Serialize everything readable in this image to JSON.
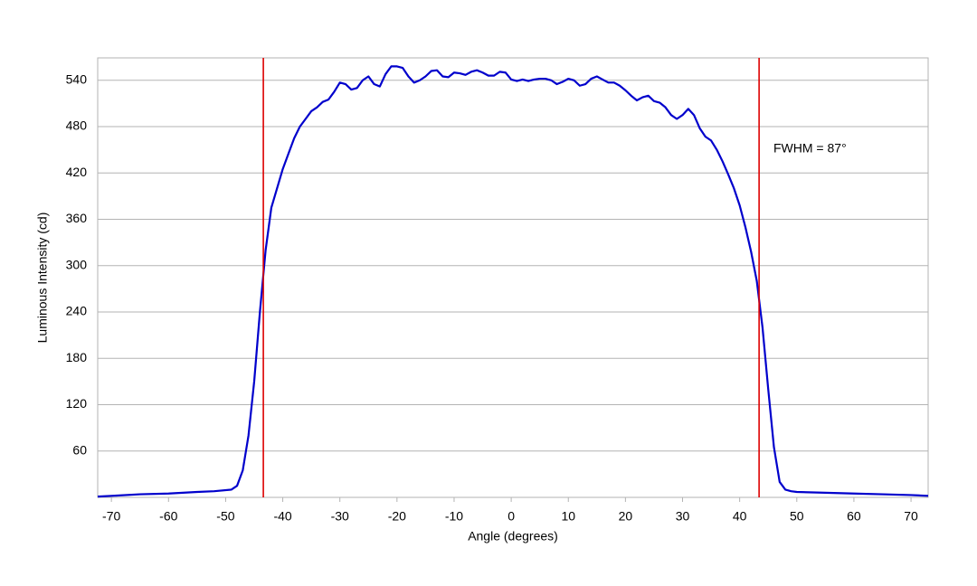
{
  "chart_data": {
    "type": "line",
    "x_label": "Angle (degrees)",
    "y_label": "Luminous Intensity (cd)",
    "x": [
      -72.4,
      -65,
      -60,
      -55,
      -52,
      -49,
      -48,
      -47,
      -46,
      -45,
      -44,
      -43,
      -42,
      -41,
      -40,
      -39,
      -38,
      -37,
      -36,
      -35,
      -34,
      -33,
      -32,
      -31,
      -30,
      -29,
      -28,
      -27,
      -26,
      -25,
      -24,
      -23,
      -22,
      -21,
      -20,
      -19,
      -18,
      -17,
      -16,
      -15,
      -14,
      -13,
      -12,
      -11,
      -10,
      -9,
      -8,
      -7,
      -6,
      -5,
      -4,
      -3,
      -2,
      -1,
      0,
      1,
      2,
      3,
      4,
      5,
      6,
      7,
      8,
      9,
      10,
      11,
      12,
      13,
      14,
      15,
      16,
      17,
      18,
      19,
      20,
      21,
      22,
      23,
      24,
      25,
      26,
      27,
      28,
      29,
      30,
      31,
      32,
      33,
      34,
      35,
      36,
      37,
      38,
      39,
      40,
      41,
      42,
      43,
      44,
      45,
      46,
      47,
      48,
      49,
      50,
      55,
      60,
      65,
      70,
      73
    ],
    "values": [
      1,
      4,
      5,
      7,
      8,
      10,
      15,
      35,
      80,
      150,
      240,
      320,
      375,
      400,
      425,
      445,
      465,
      480,
      490,
      500,
      505,
      512,
      515,
      525,
      537,
      535,
      528,
      530,
      540,
      545,
      535,
      532,
      548,
      558,
      558,
      556,
      545,
      537,
      540,
      545,
      552,
      553,
      545,
      544,
      550,
      549,
      547,
      551,
      553,
      550,
      546,
      546,
      551,
      550,
      541,
      539,
      541,
      539,
      541,
      542,
      542,
      540,
      535,
      538,
      542,
      540,
      533,
      535,
      542,
      545,
      541,
      537,
      537,
      533,
      527,
      520,
      514,
      518,
      520,
      513,
      511,
      505,
      495,
      490,
      495,
      503,
      495,
      478,
      467,
      462,
      450,
      435,
      418,
      400,
      378,
      350,
      318,
      280,
      220,
      140,
      65,
      20,
      10,
      8,
      7,
      6,
      5,
      4,
      3,
      2
    ],
    "color": "#0000cc",
    "xlim": [
      -72.4,
      73
    ],
    "ylim": [
      0,
      569
    ],
    "xticks": [
      -70,
      -60,
      -50,
      -40,
      -30,
      -20,
      -10,
      0,
      10,
      20,
      30,
      40,
      50,
      60,
      70
    ],
    "yticks": [
      60,
      120,
      180,
      240,
      300,
      360,
      420,
      480,
      540
    ],
    "grid": true,
    "vlines": [
      -43.4,
      43.4
    ],
    "vline_color": "#dd0000",
    "annotation": "FWHM = 87°"
  }
}
